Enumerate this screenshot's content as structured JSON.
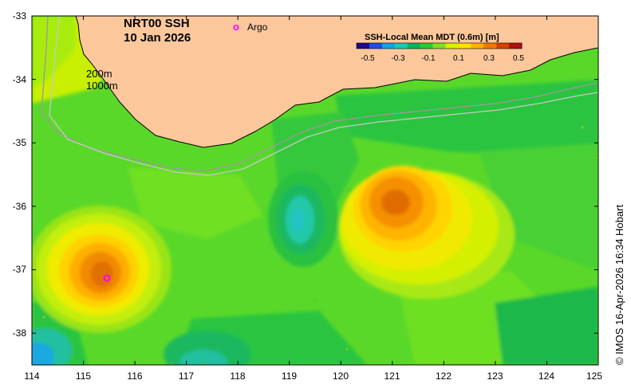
{
  "map": {
    "title_line1": "NRT00 SSH",
    "title_line2": "10 Jan 2026",
    "product": "SSH-Local Mean MDT (0.6m) [m]",
    "lon_range": [
      114,
      125
    ],
    "lat_range": [
      -38.5,
      -33
    ],
    "lon_ticks": [
      "114",
      "115",
      "116",
      "117",
      "118",
      "119",
      "120",
      "121",
      "122",
      "123",
      "124",
      "125"
    ],
    "lat_ticks": [
      "-33",
      "-34",
      "-35",
      "-36",
      "-37",
      "-38"
    ],
    "contour_labels": {
      "shallow": "200m",
      "deep": "1000m"
    },
    "legend": {
      "argo_symbol": "o",
      "argo_label": "Argo"
    },
    "colorbar": {
      "ticks": [
        "-0.5",
        "-0.3",
        "-0.1",
        "0.1",
        "0.3",
        "0.5"
      ],
      "colors": [
        "#1a0a8c",
        "#1e50dc",
        "#1aa0e6",
        "#20c8b4",
        "#10b060",
        "#30c830",
        "#80e020",
        "#d8f000",
        "#ffe000",
        "#ffb000",
        "#f07800",
        "#d84000",
        "#b01010"
      ]
    },
    "credit": "© IMOS 16-Apr-2026 16:34 Hobart",
    "land_color": "#fcc89b",
    "argo_color": "#ff00ff"
  }
}
